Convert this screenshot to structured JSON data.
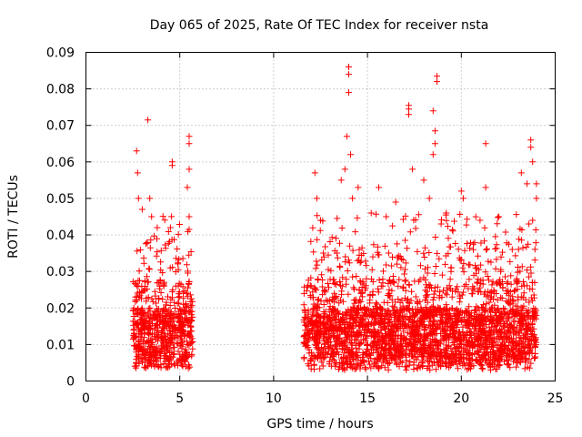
{
  "chart_data": {
    "type": "scatter",
    "title": "Day 065 of 2025, Rate Of TEC Index for receiver nsta",
    "xlabel": "GPS time / hours",
    "ylabel": "ROTI / TECUs",
    "xlim": [
      0,
      25
    ],
    "ylim": [
      0,
      0.09
    ],
    "xticks": [
      "0",
      "5",
      "10",
      "15",
      "20",
      "25"
    ],
    "yticks": [
      "0",
      "0.01",
      "0.02",
      "0.03",
      "0.04",
      "0.05",
      "0.06",
      "0.07",
      "0.08",
      "0.09"
    ],
    "grid": true,
    "marker": "+",
    "color": "#ff0000",
    "series": [
      {
        "name": "ROTI",
        "note": "dense observations in two windows: ~2.5-5.7 h and ~11.6-24.0 h; values mostly 0.005-0.03 with outliers",
        "points": [
          [
            2.7,
            0.063
          ],
          [
            2.75,
            0.057
          ],
          [
            2.8,
            0.05
          ],
          [
            3.0,
            0.047
          ],
          [
            3.3,
            0.0715
          ],
          [
            3.4,
            0.05
          ],
          [
            3.5,
            0.045
          ],
          [
            3.8,
            0.042
          ],
          [
            4.6,
            0.06
          ],
          [
            4.6,
            0.059
          ],
          [
            4.5,
            0.042
          ],
          [
            5.5,
            0.067
          ],
          [
            5.5,
            0.065
          ],
          [
            5.5,
            0.058
          ],
          [
            5.4,
            0.053
          ],
          [
            5.5,
            0.045
          ],
          [
            12.2,
            0.057
          ],
          [
            12.3,
            0.05
          ],
          [
            12.5,
            0.044
          ],
          [
            13.6,
            0.055
          ],
          [
            13.8,
            0.058
          ],
          [
            13.9,
            0.067
          ],
          [
            14.0,
            0.079
          ],
          [
            14.0,
            0.084
          ],
          [
            14.0,
            0.086
          ],
          [
            14.1,
            0.062
          ],
          [
            14.2,
            0.05
          ],
          [
            14.5,
            0.053
          ],
          [
            15.2,
            0.046
          ],
          [
            15.6,
            0.053
          ],
          [
            16.0,
            0.045
          ],
          [
            16.5,
            0.049
          ],
          [
            17.2,
            0.0755
          ],
          [
            17.2,
            0.0745
          ],
          [
            17.2,
            0.073
          ],
          [
            17.4,
            0.058
          ],
          [
            18.0,
            0.055
          ],
          [
            18.3,
            0.05
          ],
          [
            18.5,
            0.074
          ],
          [
            18.6,
            0.0685
          ],
          [
            18.7,
            0.0835
          ],
          [
            18.7,
            0.082
          ],
          [
            18.6,
            0.065
          ],
          [
            18.5,
            0.062
          ],
          [
            19.2,
            0.046
          ],
          [
            20.0,
            0.052
          ],
          [
            20.1,
            0.05
          ],
          [
            21.3,
            0.065
          ],
          [
            21.3,
            0.053
          ],
          [
            21.0,
            0.044
          ],
          [
            22.0,
            0.045
          ],
          [
            23.2,
            0.057
          ],
          [
            23.5,
            0.054
          ],
          [
            23.7,
            0.066
          ],
          [
            23.7,
            0.064
          ],
          [
            23.8,
            0.06
          ],
          [
            24.0,
            0.054
          ],
          [
            24.0,
            0.05
          ],
          [
            23.8,
            0.044
          ],
          [
            23.6,
            0.043
          ]
        ]
      }
    ]
  }
}
